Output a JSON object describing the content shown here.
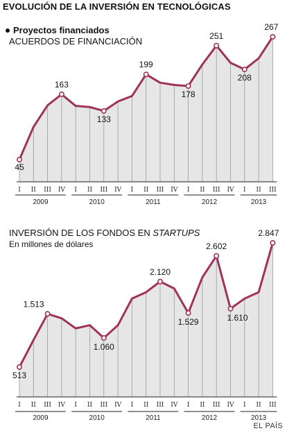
{
  "title": "EVOLUCIÓN DE LA INVERSIÓN EN TECNOLÓGICAS",
  "colors": {
    "line": "#a0325a",
    "area": "#e6e6e6",
    "grid": "#9a9a9a",
    "axis": "#222222"
  },
  "section1": {
    "heading": "Proyectos financiados",
    "subtitle": "ACUERDOS DE FINANCIACIÓN"
  },
  "section2": {
    "title_main": "INVERSIÓN DE LOS FONDOS EN ",
    "title_em": "STARTUPS",
    "subtitle": "En millones de dólares"
  },
  "credit": "EL PAÍS",
  "chart_data": [
    {
      "type": "area",
      "title": "ACUERDOS DE FINANCIACIÓN",
      "x": [
        "I",
        "II",
        "III",
        "IV",
        "I",
        "II",
        "III",
        "IV",
        "I",
        "II",
        "III",
        "IV",
        "I",
        "II",
        "III",
        "IV",
        "I",
        "II",
        "III"
      ],
      "years": [
        {
          "label": "2009",
          "quarters": 4
        },
        {
          "label": "2010",
          "quarters": 4
        },
        {
          "label": "2011",
          "quarters": 4
        },
        {
          "label": "2012",
          "quarters": 4
        },
        {
          "label": "2013",
          "quarters": 3
        }
      ],
      "values": [
        45,
        104,
        143,
        163,
        142,
        140,
        133,
        150,
        160,
        199,
        184,
        180,
        178,
        217,
        251,
        220,
        208,
        228,
        267
      ],
      "data_labels": [
        {
          "index": 0,
          "text": "45"
        },
        {
          "index": 3,
          "text": "163"
        },
        {
          "index": 6,
          "text": "133"
        },
        {
          "index": 9,
          "text": "199"
        },
        {
          "index": 12,
          "text": "178"
        },
        {
          "index": 14,
          "text": "251"
        },
        {
          "index": 16,
          "text": "208"
        },
        {
          "index": 18,
          "text": "267"
        }
      ],
      "ylim": [
        45,
        267
      ],
      "grid": true
    },
    {
      "type": "area",
      "title": "INVERSIÓN DE LOS FONDOS EN STARTUPS",
      "ylabel": "En millones de dólares",
      "x": [
        "I",
        "II",
        "III",
        "IV",
        "I",
        "II",
        "III",
        "IV",
        "I",
        "II",
        "III",
        "IV",
        "I",
        "II",
        "III",
        "IV",
        "I",
        "II",
        "III"
      ],
      "years": [
        {
          "label": "2009",
          "quarters": 4
        },
        {
          "label": "2010",
          "quarters": 4
        },
        {
          "label": "2011",
          "quarters": 4
        },
        {
          "label": "2012",
          "quarters": 4
        },
        {
          "label": "2013",
          "quarters": 3
        }
      ],
      "values": [
        513,
        1020,
        1513,
        1430,
        1240,
        1300,
        1060,
        1300,
        1800,
        1920,
        2120,
        1990,
        1529,
        2200,
        2602,
        1610,
        1800,
        1920,
        2847
      ],
      "data_labels": [
        {
          "index": 0,
          "text": "513"
        },
        {
          "index": 2,
          "text": "1.513"
        },
        {
          "index": 6,
          "text": "1.060"
        },
        {
          "index": 10,
          "text": "2.120"
        },
        {
          "index": 12,
          "text": "1.529"
        },
        {
          "index": 14,
          "text": "2.602"
        },
        {
          "index": 15,
          "text": "1.610"
        },
        {
          "index": 18,
          "text": "2.847"
        }
      ],
      "ylim": [
        513,
        2847
      ],
      "grid": true
    }
  ]
}
